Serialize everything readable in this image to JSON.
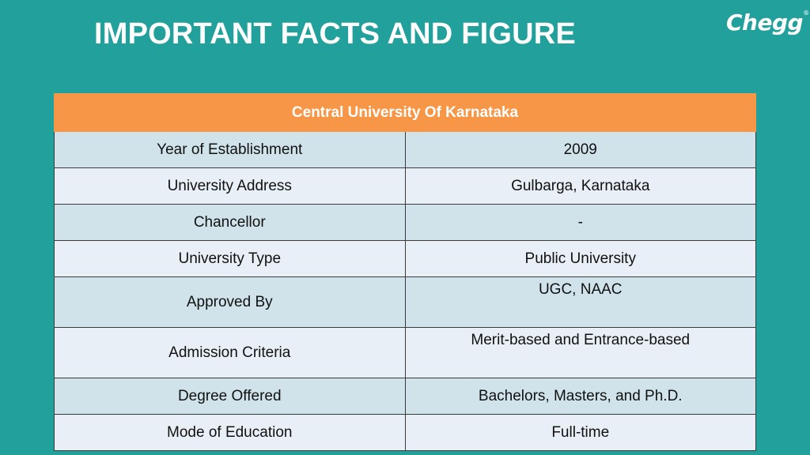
{
  "header": {
    "title": "IMPORTANT FACTS AND FIGURE",
    "logo": "Chegg"
  },
  "table": {
    "heading": "Central University  Of Karnataka",
    "rows": [
      {
        "label": "Year of Establishment",
        "value": "2009"
      },
      {
        "label": "University Address",
        "value": "Gulbarga, Karnataka"
      },
      {
        "label": "Chancellor",
        "value": "-"
      },
      {
        "label": "University Type",
        "value": "Public University"
      },
      {
        "label": "Approved By",
        "value": "UGC, NAAC"
      },
      {
        "label": "Admission Criteria",
        "value": "Merit-based and Entrance-based"
      },
      {
        "label": "Degree Offered",
        "value": "Bachelors, Masters, and Ph.D."
      },
      {
        "label": "Mode of Education",
        "value": "Full-time"
      }
    ]
  },
  "colors": {
    "background": "#21a09c",
    "header_row": "#f79646",
    "row_dark": "#d0e3ea",
    "row_light": "#e9eff6"
  }
}
